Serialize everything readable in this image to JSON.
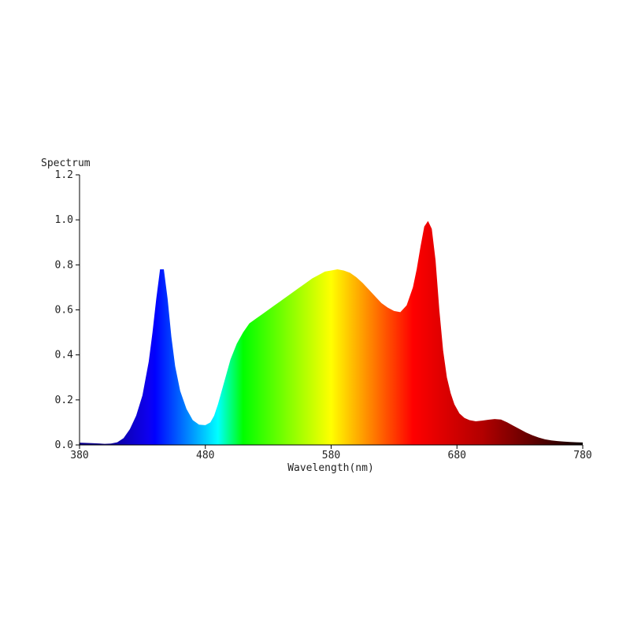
{
  "chart_data": {
    "type": "area",
    "title": "",
    "xlabel": "Wavelength(nm)",
    "ylabel": "Spectrum",
    "xlim": [
      380,
      780
    ],
    "ylim": [
      0,
      1.2
    ],
    "x_ticks": [
      380,
      480,
      580,
      680,
      780
    ],
    "x_tick_labels": [
      "380",
      "480",
      "580",
      "680",
      "780"
    ],
    "y_ticks": [
      0,
      0.2,
      0.4,
      0.6,
      0.8,
      1.0,
      1.2
    ],
    "y_tick_labels": [
      "0.0",
      "0.2",
      "0.4",
      "0.6",
      "0.8",
      "1.0",
      "1.2"
    ],
    "grid": false,
    "fill": "visible-spectrum gradient by wavelength",
    "series": [
      {
        "x": [
          380,
          390,
          400,
          405,
          410,
          415,
          420,
          425,
          430,
          435,
          438,
          441,
          444,
          447,
          450,
          453,
          456,
          460,
          465,
          470,
          475,
          480,
          484,
          487,
          490,
          495,
          500,
          505,
          510,
          515,
          520,
          525,
          530,
          535,
          540,
          545,
          550,
          555,
          560,
          565,
          570,
          575,
          580,
          585,
          590,
          595,
          600,
          605,
          610,
          615,
          620,
          625,
          630,
          635,
          640,
          645,
          648,
          651,
          654,
          657,
          660,
          663,
          666,
          669,
          672,
          675,
          678,
          682,
          686,
          690,
          695,
          700,
          705,
          710,
          715,
          720,
          725,
          730,
          735,
          740,
          745,
          750,
          755,
          760,
          765,
          770,
          775,
          780
        ],
        "y": [
          0.01,
          0.008,
          0.005,
          0.006,
          0.012,
          0.03,
          0.07,
          0.13,
          0.22,
          0.37,
          0.5,
          0.65,
          0.78,
          0.78,
          0.65,
          0.48,
          0.35,
          0.24,
          0.16,
          0.11,
          0.09,
          0.088,
          0.1,
          0.13,
          0.18,
          0.28,
          0.38,
          0.45,
          0.5,
          0.54,
          0.56,
          0.58,
          0.6,
          0.62,
          0.64,
          0.66,
          0.68,
          0.7,
          0.72,
          0.74,
          0.755,
          0.77,
          0.775,
          0.78,
          0.775,
          0.765,
          0.745,
          0.72,
          0.69,
          0.66,
          0.63,
          0.61,
          0.595,
          0.59,
          0.62,
          0.7,
          0.78,
          0.88,
          0.97,
          0.995,
          0.96,
          0.82,
          0.6,
          0.42,
          0.3,
          0.23,
          0.18,
          0.14,
          0.12,
          0.11,
          0.105,
          0.108,
          0.112,
          0.115,
          0.113,
          0.1,
          0.085,
          0.07,
          0.055,
          0.043,
          0.033,
          0.025,
          0.02,
          0.017,
          0.015,
          0.013,
          0.012,
          0.011
        ]
      }
    ]
  }
}
